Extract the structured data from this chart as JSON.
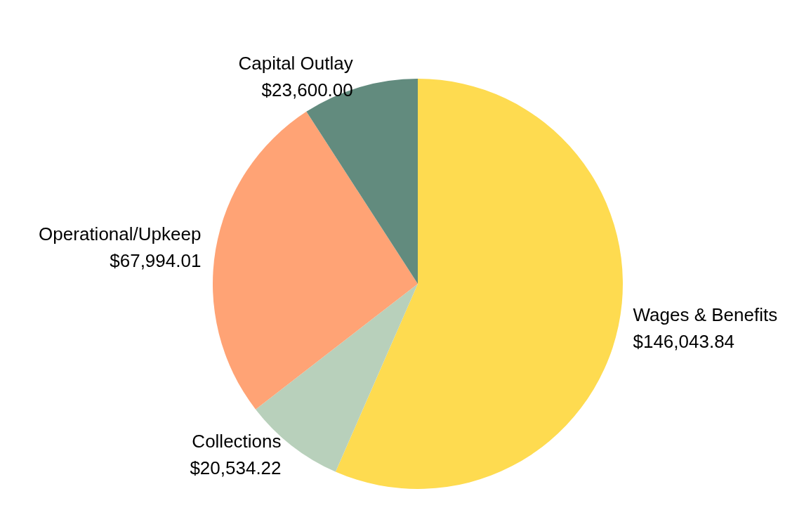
{
  "chart_data": {
    "type": "pie",
    "categories": [
      "Wages & Benefits",
      "Collections",
      "Operational/Upkeep",
      "Capital Outlay"
    ],
    "values": [
      146043.84,
      20534.22,
      67994.01,
      23600.0
    ],
    "value_labels": [
      "$146,043.84",
      "$20,534.22",
      "$67,994.01",
      "$23,600.00"
    ],
    "colors": [
      "#fedb50",
      "#b8d0bb",
      "#ffa375",
      "#628b7e"
    ],
    "legend": false
  }
}
